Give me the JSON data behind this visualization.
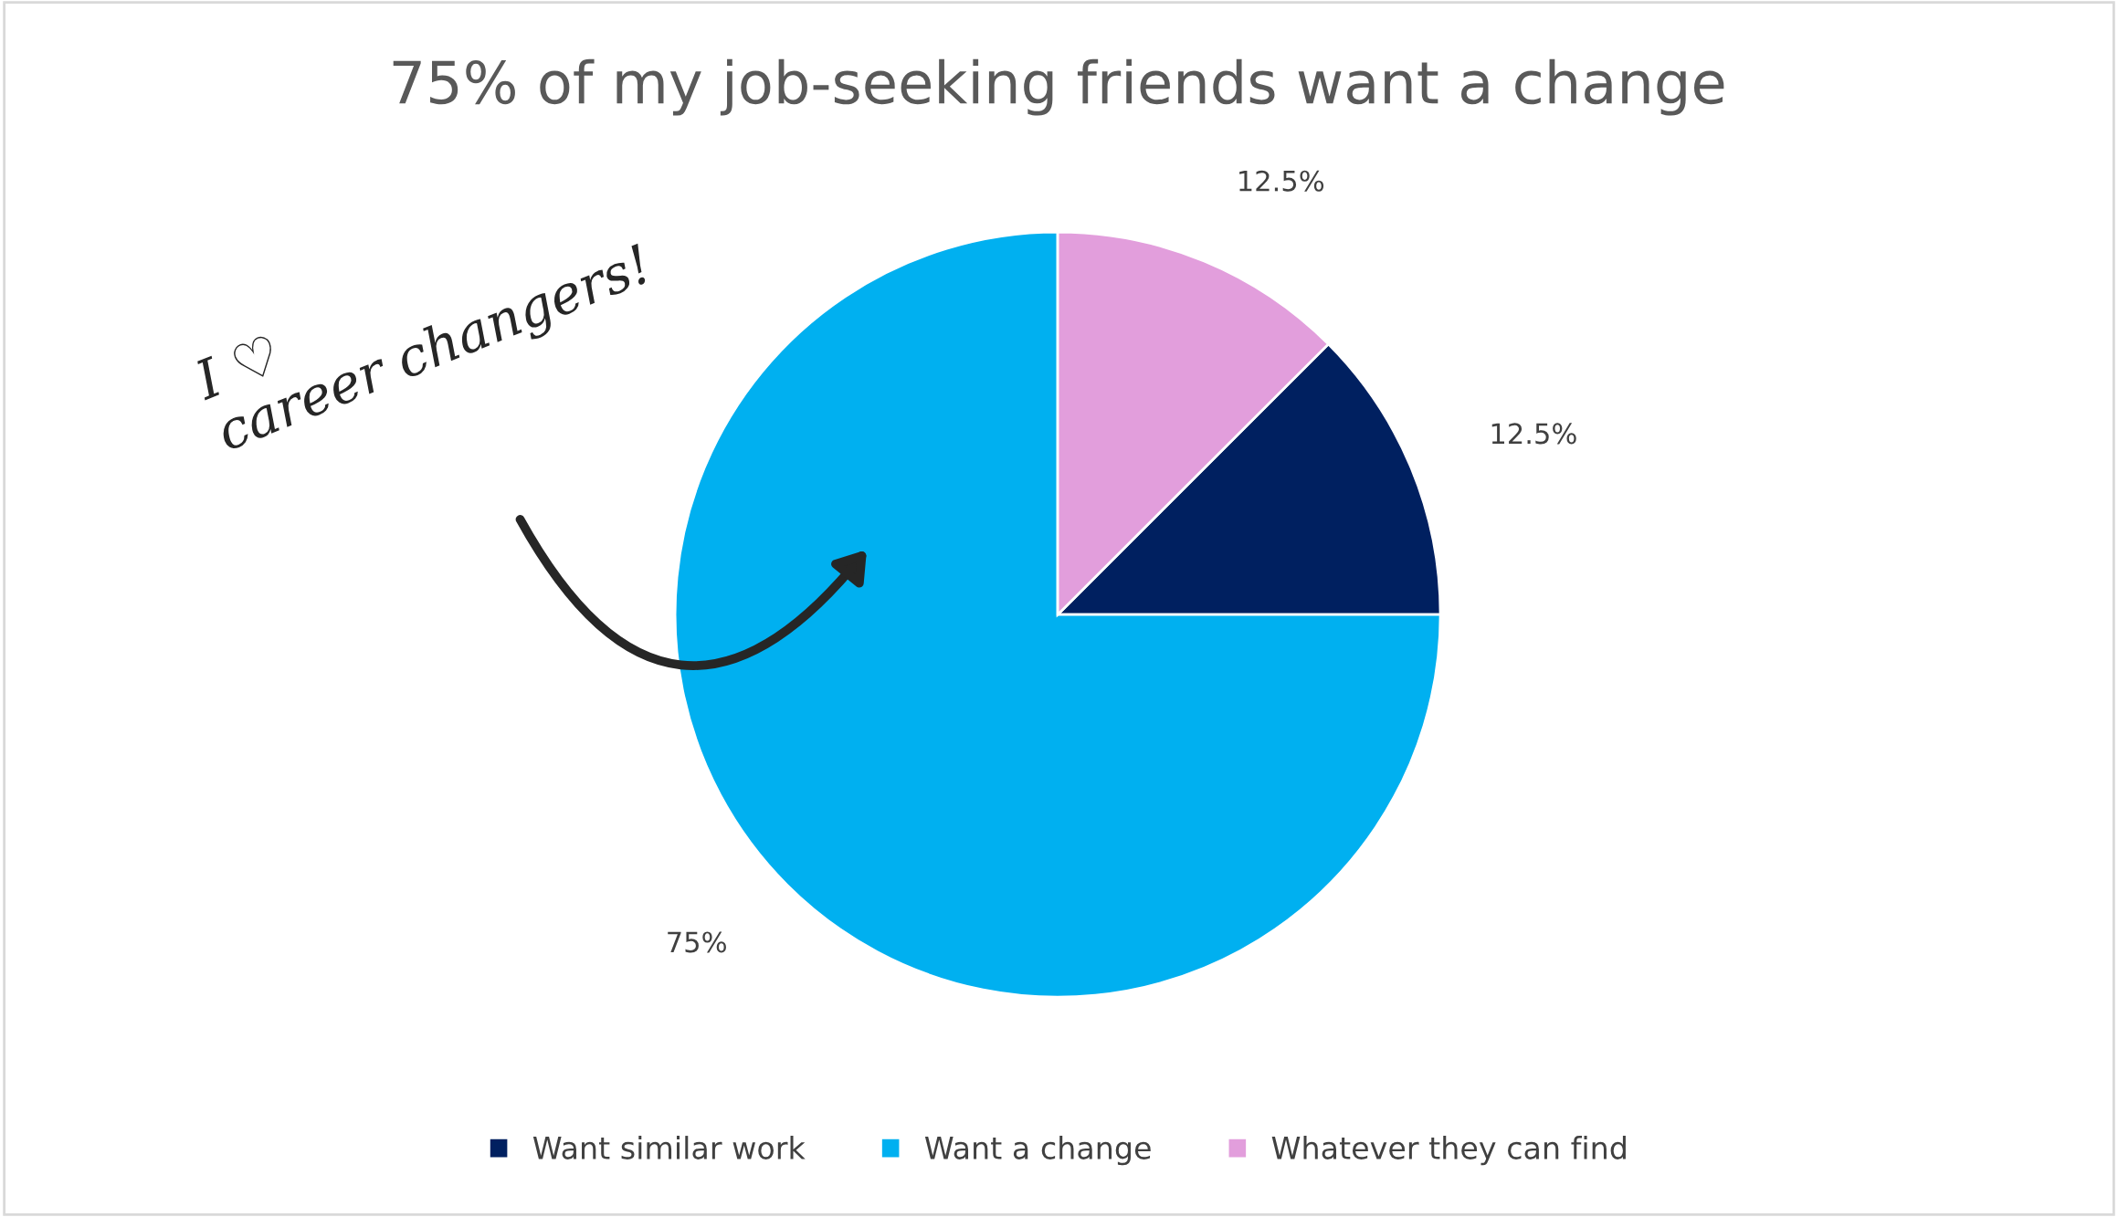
{
  "chart_data": {
    "type": "pie",
    "title": "75% of my job-seeking friends want a change",
    "categories": [
      "Want similar work",
      "Want a change",
      "Whatever they can find"
    ],
    "values": [
      12.5,
      75,
      12.5
    ],
    "colors": [
      "#002060",
      "#00b0f0",
      "#e29edc"
    ],
    "value_labels": [
      "12.5%",
      "75%",
      "12.5%"
    ],
    "legend": "bottom",
    "annotations": [
      "I ♡\ncareer changers!"
    ]
  }
}
